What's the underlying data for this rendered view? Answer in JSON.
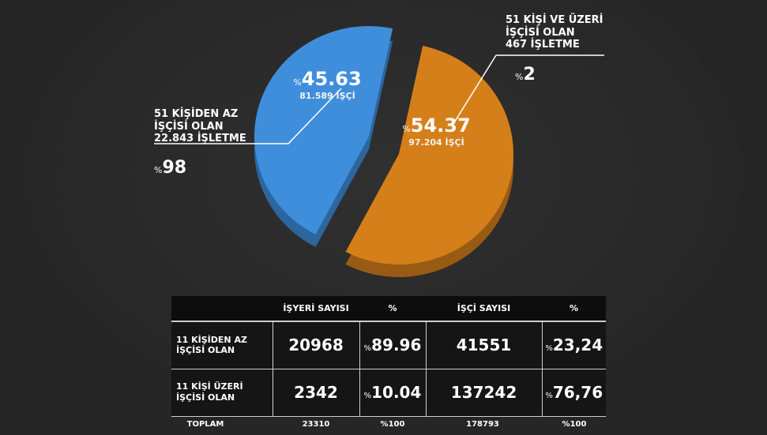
{
  "chart_data": {
    "type": "pie",
    "title": "",
    "slices": [
      {
        "name": "51 KİŞİDEN AZ İŞÇİSİ OLAN",
        "businesses": "22.843 İŞLETME",
        "business_share": "98",
        "value": 45.63,
        "workers": "81.589 İŞÇİ",
        "color": "#3f8edb"
      },
      {
        "name": "51 KİŞİ VE ÜZERİ İŞÇİSİ OLAN",
        "businesses": "467 İŞLETME",
        "business_share": "2",
        "value": 54.37,
        "workers": "97.204 İŞÇİ",
        "color": "#d57f1a"
      }
    ],
    "labels": {
      "left_line1": "51 KİŞİDEN AZ",
      "left_line2": "İŞÇİSİ OLAN",
      "left_line3": "22.843 İŞLETME",
      "left_pct": "98",
      "right_line1": "51 KİŞİ VE ÜZERİ",
      "right_line2": "İŞÇİSİ OLAN",
      "right_line3": "467 İŞLETME",
      "right_pct": "2",
      "blue_value": "45.63",
      "blue_workers": "81.589 İŞÇİ",
      "orange_value": "54.37",
      "orange_workers": "97.204 İŞÇİ",
      "pct_sign": "%"
    }
  },
  "table": {
    "headers": [
      "",
      "İŞYERİ SAYISI",
      "%",
      "İŞÇİ SAYISI",
      "%"
    ],
    "rows": [
      {
        "label1": "11 KİŞİDEN AZ",
        "label2": "İŞÇİSİ OLAN",
        "businesses": "20968",
        "biz_pct": "89.96",
        "workers": "41551",
        "worker_pct": "23,24"
      },
      {
        "label1": "11 KİŞİ ÜZERİ",
        "label2": "İŞÇİSİ OLAN",
        "businesses": "2342",
        "biz_pct": "10.04",
        "workers": "137242",
        "worker_pct": "76,76"
      }
    ],
    "total": {
      "label": "TOPLAM",
      "businesses": "23310",
      "biz_pct": "%100",
      "workers": "178793",
      "worker_pct": "%100"
    }
  }
}
